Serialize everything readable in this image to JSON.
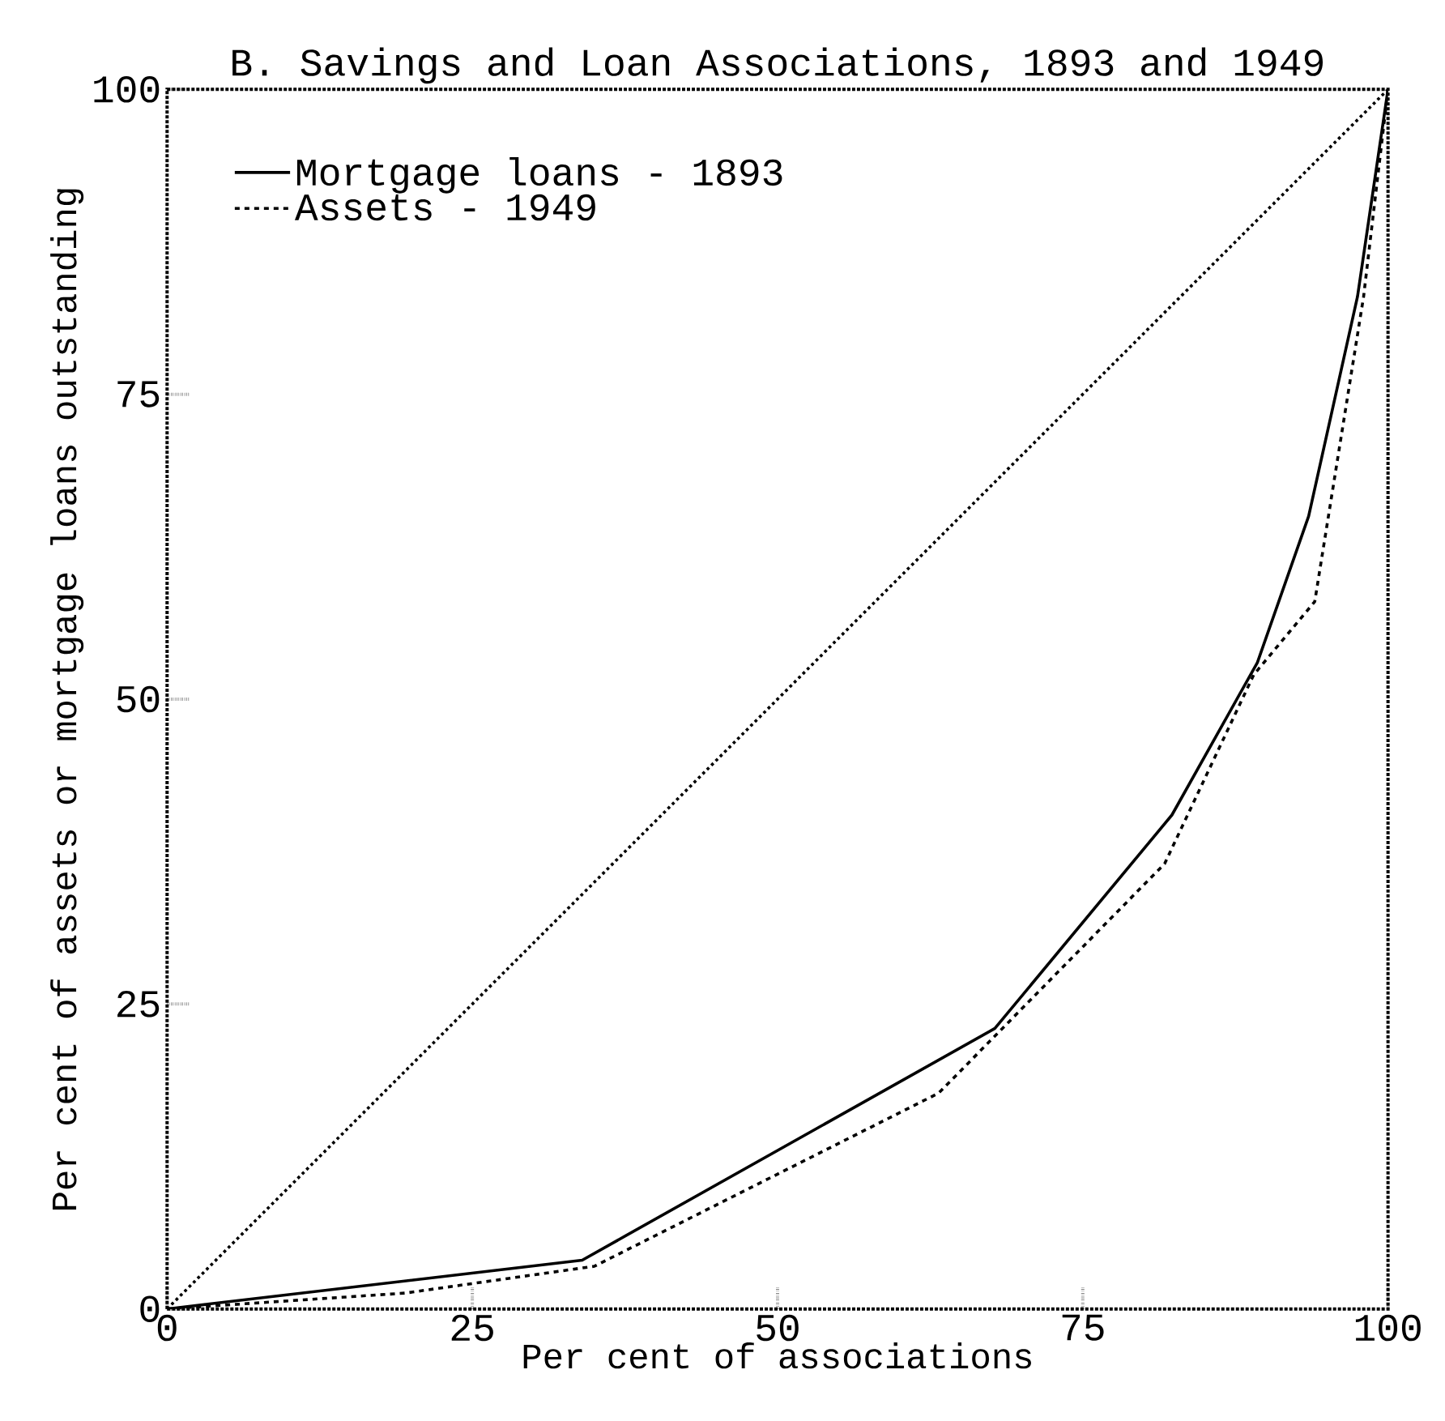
{
  "chart_data": {
    "type": "line",
    "title": "B. Savings and Loan Associations, 1893 and 1949",
    "xlabel": "Per cent of associations",
    "ylabel": "Per cent of assets or mortgage loans outstanding",
    "xlim": [
      0,
      100
    ],
    "ylim": [
      0,
      100
    ],
    "xticks": [
      0,
      25,
      50,
      75,
      100
    ],
    "yticks": [
      0,
      25,
      50,
      75,
      100
    ],
    "legend": "top left",
    "marker": "none",
    "grid": false,
    "series": [
      {
        "name": "Mortgage loans - 1893",
        "color": "#000000",
        "line_style": "solid",
        "x": [
          0,
          34,
          67.8,
          82.3,
          89.3,
          93.5,
          97.5,
          100
        ],
        "values": [
          0,
          4,
          23,
          40.5,
          53,
          65,
          83,
          100
        ]
      },
      {
        "name": "Assets - 1949",
        "color": "#000000",
        "line_style": "dashed",
        "x": [
          0,
          19.5,
          35,
          63.2,
          81.7,
          89,
          94,
          98,
          100
        ],
        "values": [
          0,
          1.3,
          3.5,
          17.7,
          36.5,
          52,
          58,
          83,
          100
        ]
      },
      {
        "color": "#000000",
        "line_style": "dotted",
        "x": [
          0,
          100
        ],
        "values": [
          0,
          100
        ]
      }
    ]
  }
}
